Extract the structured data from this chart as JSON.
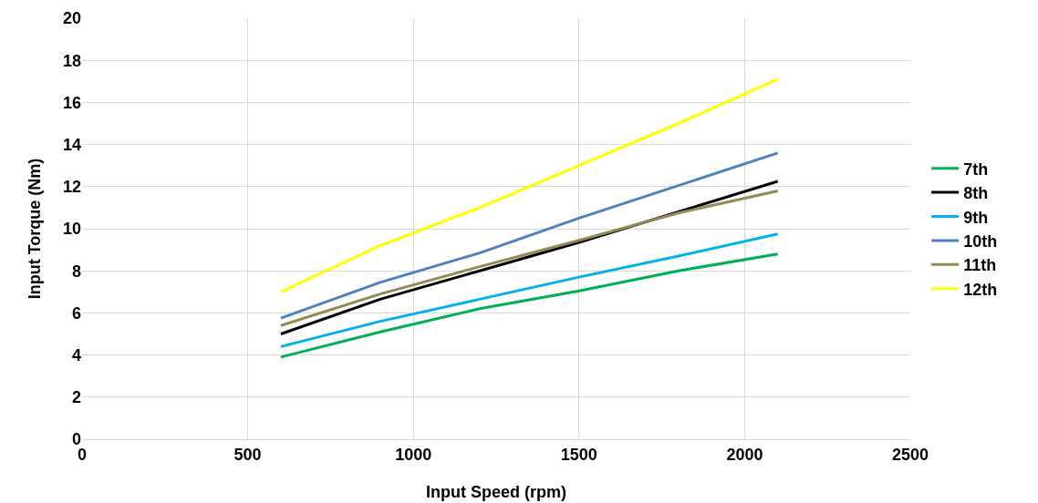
{
  "chart_data": {
    "type": "line",
    "xlabel": "Input Speed (rpm)",
    "ylabel": "Input Torque (Nm)",
    "x": [
      600,
      900,
      1200,
      1500,
      1800,
      2100
    ],
    "series": [
      {
        "name": "7th",
        "color": "#00b050",
        "values": [
          3.9,
          5.1,
          6.2,
          7.05,
          8.0,
          8.8
        ]
      },
      {
        "name": "8th",
        "color": "#000000",
        "values": [
          5.0,
          6.65,
          8.0,
          9.35,
          10.8,
          12.25
        ]
      },
      {
        "name": "9th",
        "color": "#00b0f0",
        "values": [
          4.4,
          5.6,
          6.65,
          7.7,
          8.7,
          9.75
        ]
      },
      {
        "name": "10th",
        "color": "#4f81bd",
        "values": [
          5.75,
          7.45,
          8.85,
          10.5,
          12.05,
          13.6
        ]
      },
      {
        "name": "11th",
        "color": "#948a54",
        "values": [
          5.4,
          6.9,
          8.2,
          9.45,
          10.75,
          11.8
        ]
      },
      {
        "name": "12th",
        "color": "#ffff00",
        "values": [
          7.0,
          9.2,
          11.0,
          13.0,
          15.0,
          17.1
        ]
      }
    ],
    "xlim": [
      0,
      2500
    ],
    "xticks": [
      0,
      500,
      1000,
      1500,
      2000,
      2500
    ],
    "ylim": [
      0,
      20
    ],
    "yticks": [
      0,
      2,
      4,
      6,
      8,
      10,
      12,
      14,
      16,
      18,
      20
    ],
    "grid": true,
    "legend": "right",
    "marker": "none",
    "line_style": "solid"
  }
}
